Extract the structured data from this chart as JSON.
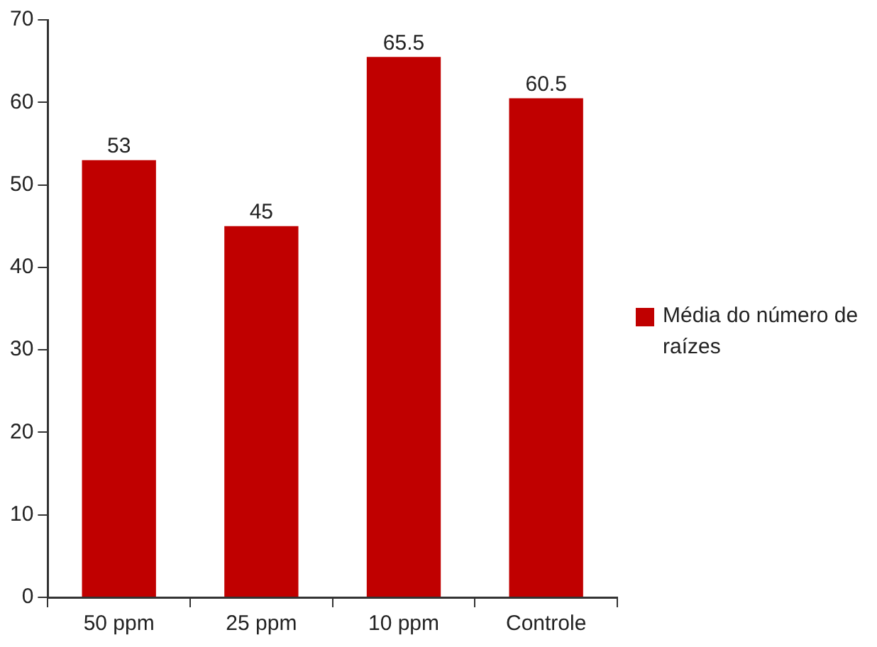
{
  "chart_data": {
    "type": "bar",
    "categories": [
      "50 ppm",
      "25 ppm",
      "10 ppm",
      "Controle"
    ],
    "series": [
      {
        "name": "Média do número de raízes",
        "color": "#c00000",
        "values": [
          53,
          45,
          65.5,
          60.5
        ]
      }
    ],
    "ylim": [
      0,
      70
    ],
    "yticks": [
      0,
      10,
      20,
      30,
      40,
      50,
      60,
      70
    ],
    "grid": false,
    "legend": "right",
    "data_labels": true
  }
}
